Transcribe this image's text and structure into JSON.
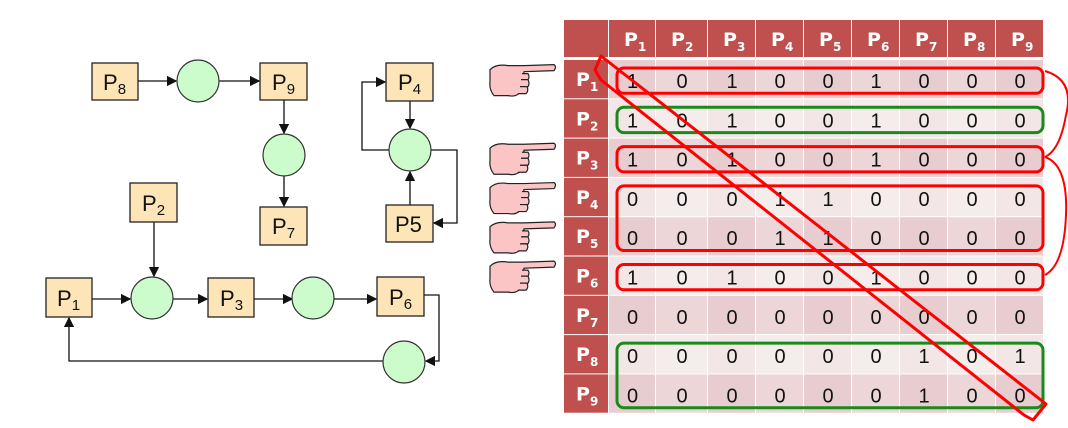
{
  "graph": {
    "processes": {
      "p1": "P",
      "p1s": "1",
      "p2": "P",
      "p2s": "2",
      "p3": "P",
      "p3s": "3",
      "p4": "P",
      "p4s": "4",
      "p5": "P5",
      "p6": "P",
      "p6s": "6",
      "p7": "P",
      "p7s": "7",
      "p8": "P",
      "p8s": "8",
      "p9": "P",
      "p9s": "9"
    },
    "resource_fill": "#ccfccc",
    "process_fill": "#fde5b8"
  },
  "matrix": {
    "header_color": "#c0504d",
    "col_labels": [
      "1",
      "2",
      "3",
      "4",
      "5",
      "6",
      "7",
      "8",
      "9"
    ],
    "row_labels": [
      "1",
      "2",
      "3",
      "4",
      "5",
      "6",
      "7",
      "8",
      "9"
    ],
    "prefix": "P",
    "rows": [
      [
        1,
        0,
        1,
        0,
        0,
        1,
        0,
        0,
        0
      ],
      [
        1,
        0,
        1,
        0,
        0,
        1,
        0,
        0,
        0
      ],
      [
        1,
        0,
        1,
        0,
        0,
        1,
        0,
        0,
        0
      ],
      [
        0,
        0,
        0,
        1,
        1,
        0,
        0,
        0,
        0
      ],
      [
        0,
        0,
        0,
        1,
        1,
        0,
        0,
        0,
        0
      ],
      [
        1,
        0,
        1,
        0,
        0,
        1,
        0,
        0,
        0
      ],
      [
        0,
        0,
        0,
        0,
        0,
        0,
        0,
        0,
        0
      ],
      [
        0,
        0,
        0,
        0,
        0,
        0,
        1,
        0,
        1
      ],
      [
        0,
        0,
        0,
        0,
        0,
        0,
        1,
        0,
        0
      ]
    ],
    "pointer_rows": [
      1,
      3,
      4,
      5,
      6
    ],
    "red_groups": [
      [
        1,
        1
      ],
      [
        3,
        3
      ],
      [
        4,
        5
      ],
      [
        6,
        6
      ]
    ],
    "green_groups": [
      [
        2,
        2
      ],
      [
        8,
        9
      ]
    ],
    "highlight_colors": {
      "red": "#ff0000",
      "green": "#1a8a1a"
    }
  }
}
